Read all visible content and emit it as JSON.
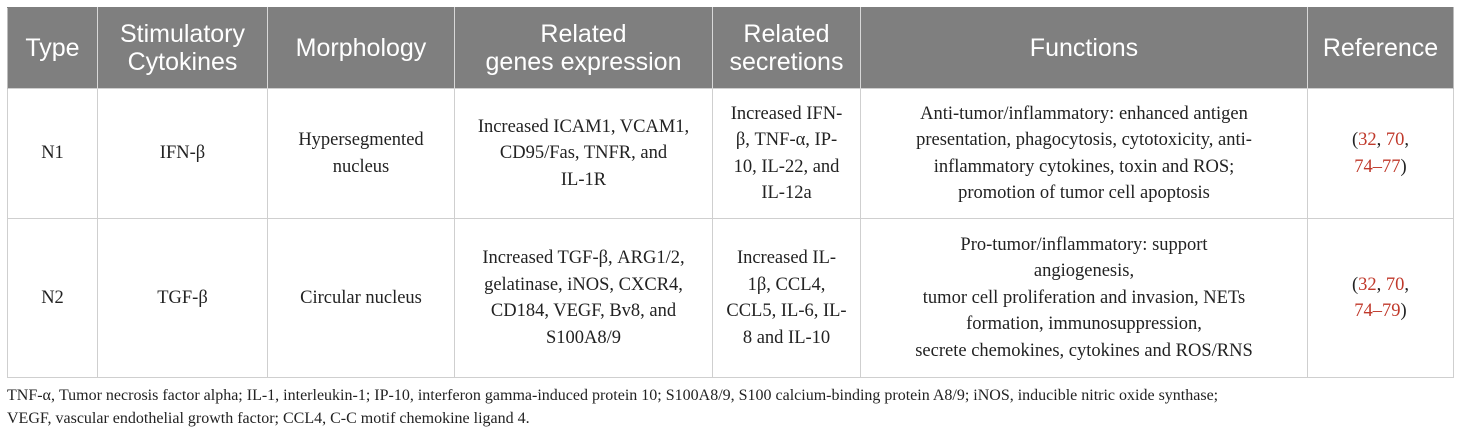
{
  "table": {
    "headers": [
      {
        "line1": "Type",
        "line2": ""
      },
      {
        "line1": "Stimulatory",
        "line2": "Cytokines"
      },
      {
        "line1": "Morphology",
        "line2": ""
      },
      {
        "line1": "Related",
        "line2": "genes expression"
      },
      {
        "line1": "Related",
        "line2": "secretions"
      },
      {
        "line1": "Functions",
        "line2": ""
      },
      {
        "line1": "Reference",
        "line2": ""
      }
    ],
    "rows": [
      {
        "type": "N1",
        "cytokine": "IFN-β",
        "morphology": [
          "Hypersegmented",
          "nucleus"
        ],
        "genes": [
          "Increased ICAM1, VCAM1,",
          "CD95/Fas, TNFR, and",
          "IL-1R"
        ],
        "secretions": [
          "Increased IFN-",
          "β, TNF-α, IP-",
          "10, IL-22, and",
          "IL-12a"
        ],
        "functions": [
          "Anti-tumor/inflammatory: enhanced antigen",
          "presentation, phagocytosis, cytotoxicity, anti-",
          "inflammatory cytokines, toxin and ROS;",
          "promotion of tumor cell apoptosis"
        ],
        "refs": {
          "r1": "32",
          "r2": "70",
          "r3": "74–77"
        }
      },
      {
        "type": "N2",
        "cytokine": "TGF-β",
        "morphology": [
          "Circular nucleus"
        ],
        "genes": [
          "Increased TGF-β, ARG1/2,",
          "gelatinase, iNOS, CXCR4,",
          "CD184, VEGF, Bv8, and",
          "S100A8/9"
        ],
        "secretions": [
          "Increased IL-",
          "1β, CCL4,",
          "CCL5, IL-6, IL-",
          "8 and IL-10"
        ],
        "functions": [
          "Pro-tumor/inflammatory: support",
          "angiogenesis,",
          "tumor cell proliferation and invasion, NETs",
          "formation, immunosuppression,",
          "secrete chemokines, cytokines and ROS/RNS"
        ],
        "refs": {
          "r1": "32",
          "r2": "70",
          "r3": "74–79"
        }
      }
    ]
  },
  "footnote": {
    "line1": "TNF-α, Tumor necrosis factor alpha; IL-1, interleukin-1; IP-10, interferon gamma-induced protein 10; S100A8/9, S100 calcium-binding protein A8/9; iNOS, inducible nitric oxide synthase;",
    "line2": "VEGF, vascular endothelial growth factor; CCL4, C-C motif chemokine ligand 4."
  },
  "colors": {
    "header_bg": "#7f7f7f",
    "header_text": "#ffffff",
    "reference_link": "#c0392b",
    "border": "#cfcfcf"
  }
}
